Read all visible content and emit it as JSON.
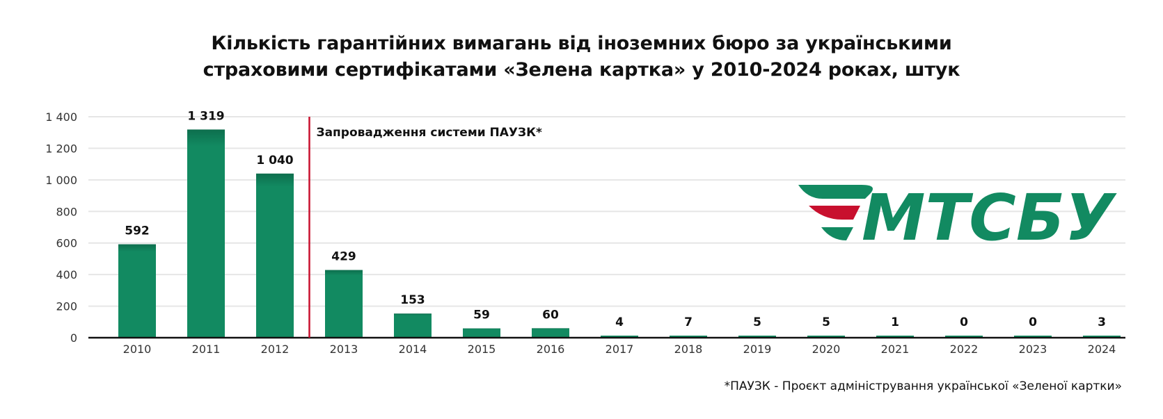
{
  "title": {
    "line1": "Кількість гарантійних вимагань від іноземних бюро за українськими",
    "line2": "страховими сертифікатами «Зелена картка» у 2010-2024 роках, штук"
  },
  "footnote": "*ПАУЗК - Проєкт адміністрування української «Зеленої картки»",
  "logo": {
    "text": "МТСБУ",
    "icon": "stripes-logo-icon",
    "green": "#128A61",
    "red": "#C8102E"
  },
  "chart_data": {
    "type": "bar",
    "categories": [
      "2010",
      "2011",
      "2012",
      "2013",
      "2014",
      "2015",
      "2016",
      "2017",
      "2018",
      "2019",
      "2020",
      "2021",
      "2022",
      "2023",
      "2024"
    ],
    "values": [
      592,
      1319,
      1040,
      429,
      153,
      59,
      60,
      4,
      7,
      5,
      5,
      1,
      0,
      0,
      3
    ],
    "value_labels": [
      "592",
      "1 319",
      "1 040",
      "429",
      "153",
      "59",
      "60",
      "4",
      "7",
      "5",
      "5",
      "1",
      "0",
      "0",
      "3"
    ],
    "ylim": [
      0,
      1400
    ],
    "yticks": [
      0,
      200,
      400,
      600,
      800,
      1000,
      1200,
      1400
    ],
    "ytick_labels": [
      "0",
      "200",
      "400",
      "600",
      "800",
      "1 000",
      "1 200",
      "1 400"
    ],
    "grid": true,
    "bar_color": "#128A61",
    "annotation": {
      "text": "Запровадження системи ПАУЗК*",
      "between": [
        "2012",
        "2013"
      ],
      "color": "#C8102E"
    }
  }
}
